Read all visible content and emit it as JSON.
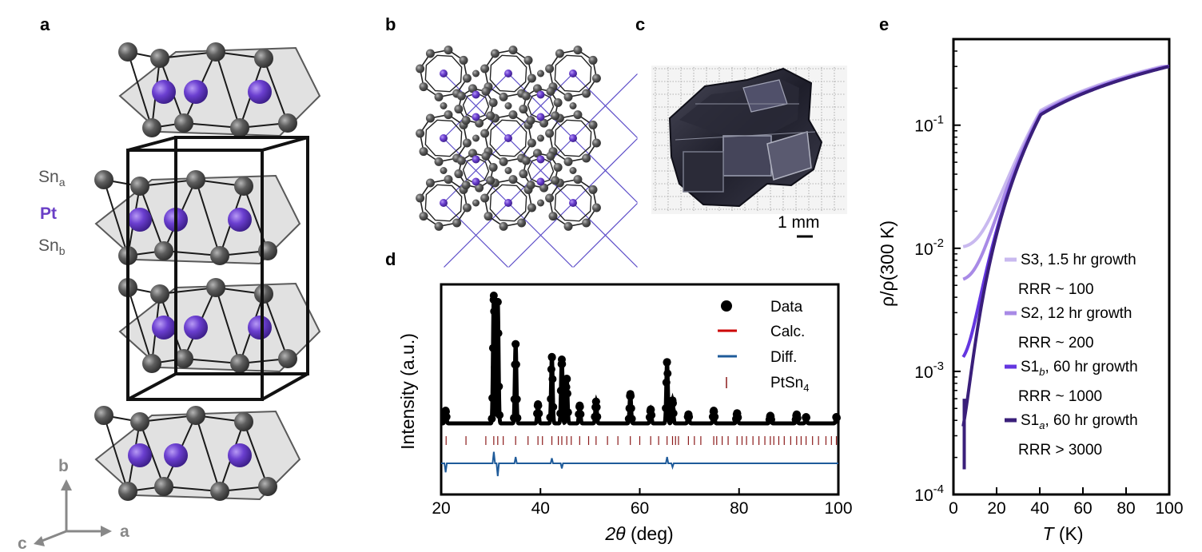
{
  "panels": {
    "a": "a",
    "b": "b",
    "c": "c",
    "d": "d",
    "e": "e"
  },
  "structure_a": {
    "labels": [
      {
        "main": "Sn",
        "sub": "a",
        "color": "#555555"
      },
      {
        "main": "Pt",
        "sub": "",
        "color": "#6a3fc6"
      },
      {
        "main": "Sn",
        "sub": "b",
        "color": "#555555"
      }
    ],
    "axes": {
      "b": "b",
      "a": "a",
      "c": "c"
    }
  },
  "photo_c": {
    "scale_label": "1 mm"
  },
  "colors": {
    "sn": "#5a5a5a",
    "pt": "#6b3fd0",
    "poly": "#cfcfcf"
  },
  "chart_data": [
    {
      "panel": "d",
      "type": "scatter",
      "xlabel_italic": "2θ",
      "xlabel_rest": " (deg)",
      "ylabel": "Intensity (a.u.)",
      "xlim": [
        20,
        100
      ],
      "xticks": [
        "20",
        "40",
        "60",
        "80",
        "100"
      ],
      "xtick_values": [
        20,
        40,
        60,
        80,
        100
      ],
      "legend": [
        {
          "label": "Data",
          "marker": "dot",
          "color": "#000000"
        },
        {
          "label": "Calc.",
          "marker": "line",
          "color": "#cc0000"
        },
        {
          "label": "Diff.",
          "marker": "line",
          "color": "#1f5b9a"
        },
        {
          "label_main": "PtSn",
          "label_sub": "4",
          "marker": "tick",
          "color": "#8b1a1a"
        }
      ],
      "baseline": 0.02,
      "peaks": [
        {
          "x": 20.9,
          "y": 0.1
        },
        {
          "x": 30.6,
          "y": 1.0
        },
        {
          "x": 31.4,
          "y": 0.95
        },
        {
          "x": 35.0,
          "y": 0.62
        },
        {
          "x": 39.5,
          "y": 0.15
        },
        {
          "x": 42.3,
          "y": 0.52
        },
        {
          "x": 44.3,
          "y": 0.5
        },
        {
          "x": 45.3,
          "y": 0.35
        },
        {
          "x": 47.9,
          "y": 0.14
        },
        {
          "x": 51.2,
          "y": 0.17
        },
        {
          "x": 58.1,
          "y": 0.23
        },
        {
          "x": 62.2,
          "y": 0.11
        },
        {
          "x": 65.5,
          "y": 0.48
        },
        {
          "x": 66.6,
          "y": 0.18
        },
        {
          "x": 69.8,
          "y": 0.07
        },
        {
          "x": 74.9,
          "y": 0.1
        },
        {
          "x": 79.6,
          "y": 0.08
        },
        {
          "x": 86.3,
          "y": 0.06
        },
        {
          "x": 91.6,
          "y": 0.07
        },
        {
          "x": 93.5,
          "y": 0.05
        },
        {
          "x": 99.6,
          "y": 0.05
        }
      ],
      "reflections": [
        21.0,
        25.0,
        29.0,
        30.6,
        31.4,
        32.5,
        35.0,
        37.5,
        39.5,
        40.4,
        42.3,
        43.6,
        44.3,
        45.3,
        46.2,
        47.9,
        49.7,
        51.2,
        53.5,
        55.6,
        58.1,
        60.0,
        62.2,
        63.8,
        65.5,
        66.6,
        67.2,
        67.8,
        69.8,
        71.0,
        72.3,
        74.9,
        75.5,
        76.6,
        77.8,
        79.6,
        80.6,
        81.5,
        82.8,
        84.0,
        85.2,
        86.3,
        87.0,
        88.0,
        89.1,
        90.4,
        91.6,
        92.5,
        93.5,
        94.8,
        96.0,
        97.5,
        98.6,
        99.6
      ],
      "diff_spikes": [
        {
          "x": 20.9,
          "d": -0.07
        },
        {
          "x": 30.6,
          "d": 0.09
        },
        {
          "x": 31.4,
          "d": -0.1
        },
        {
          "x": 35.0,
          "d": 0.05
        },
        {
          "x": 42.3,
          "d": 0.04
        },
        {
          "x": 44.3,
          "d": -0.04
        },
        {
          "x": 65.5,
          "d": 0.05
        },
        {
          "x": 66.6,
          "d": -0.03
        }
      ]
    },
    {
      "panel": "e",
      "type": "line",
      "xlabel_italic": "T",
      "xlabel_rest": " (K)",
      "ylabel": "ρ/ρ(300 K)",
      "xlim": [
        0,
        100
      ],
      "ylim": [
        0.0001,
        0.5
      ],
      "yscale": "log",
      "xticks": [
        "0",
        "20",
        "40",
        "60",
        "80",
        "100"
      ],
      "xtick_values": [
        0,
        20,
        40,
        60,
        80,
        100
      ],
      "yticks": [
        {
          "base": "10",
          "exp": "-4",
          "value": 0.0001
        },
        {
          "base": "10",
          "exp": "-3",
          "value": 0.001
        },
        {
          "base": "10",
          "exp": "-2",
          "value": 0.01
        },
        {
          "base": "10",
          "exp": "-1",
          "value": 0.1
        }
      ],
      "series": [
        {
          "name_main": "S3, 1.5 hr growth",
          "name_sub": "",
          "name_rest": "",
          "rrr": "RRR ~ 100",
          "color": "#c9b9ef",
          "rho0": 0.0102,
          "end": 0.0102
        },
        {
          "name_main": "S2, 12 hr growth",
          "name_sub": "",
          "name_rest": "",
          "rrr": "RRR ~ 200",
          "color": "#a88ae6",
          "rho0": 0.0055,
          "end": 0.0055
        },
        {
          "name_main": "S1",
          "name_sub": "b",
          "name_rest": ", 60 hr growth",
          "rrr": "RRR ~ 1000",
          "color": "#6436e0",
          "rho0": 0.0012,
          "end": 0.0012
        },
        {
          "name_main": "S1",
          "name_sub": "a",
          "name_rest": ", 60 hr growth",
          "rrr": "RRR > 3000",
          "color": "#3a1f7a",
          "rho0": 0.00025,
          "end": 0.00016
        }
      ]
    }
  ]
}
